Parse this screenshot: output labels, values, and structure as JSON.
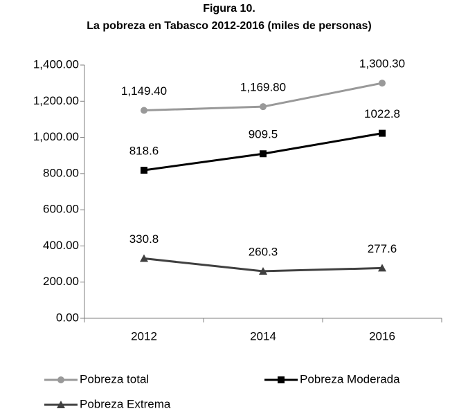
{
  "chart_data": {
    "type": "line",
    "title": "Figura 10.",
    "subtitle": "La pobreza en Tabasco 2012-2016 (miles de personas)",
    "categories": [
      "2012",
      "2014",
      "2016"
    ],
    "series": [
      {
        "name": "Pobreza total",
        "color": "#999999",
        "marker": "circle",
        "values": [
          1149.4,
          1169.8,
          1300.3
        ],
        "value_labels": [
          "1,149.40",
          "1,169.80",
          "1,300.30"
        ]
      },
      {
        "name": "Pobreza Moderada",
        "color": "#000000",
        "marker": "square",
        "values": [
          818.6,
          909.5,
          1022.8
        ]
      },
      {
        "name": "Pobreza Extrema",
        "color": "#404040",
        "marker": "triangle",
        "values": [
          330.8,
          260.3,
          277.6
        ]
      }
    ],
    "ylim": [
      0,
      1400
    ],
    "yticks": [
      {
        "value": 0,
        "label": "0.00"
      },
      {
        "value": 200,
        "label": "200.00"
      },
      {
        "value": 400,
        "label": "400.00"
      },
      {
        "value": 600,
        "label": "600.00"
      },
      {
        "value": 800,
        "label": "800.00"
      },
      {
        "value": 1000,
        "label": "1,000.00"
      },
      {
        "value": 1200,
        "label": "1,200.00"
      },
      {
        "value": 1400,
        "label": "1,400.00"
      }
    ],
    "grid": false,
    "legend": "bottom"
  }
}
